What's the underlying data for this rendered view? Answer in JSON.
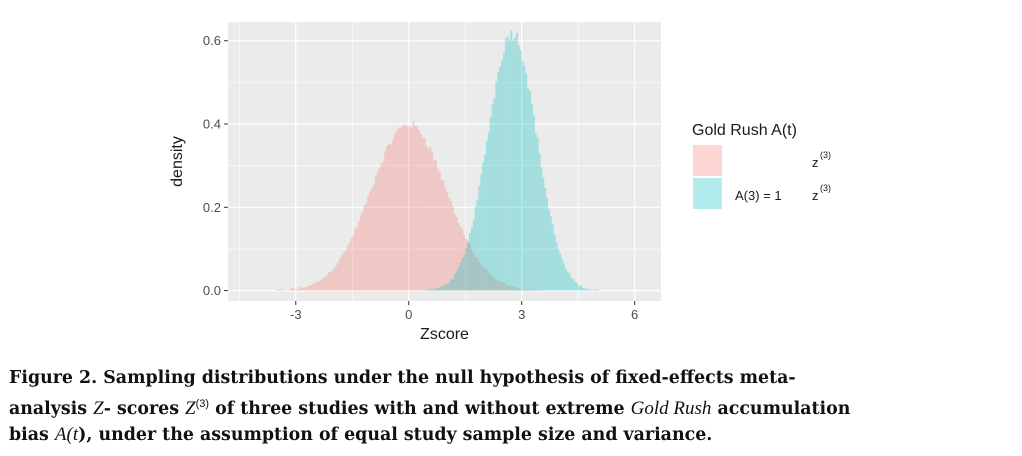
{
  "chart_data": {
    "type": "histogram",
    "xlabel": "Zscore",
    "ylabel": "density",
    "xlim": [
      -4.8,
      6.7
    ],
    "ylim": [
      -0.025,
      0.645
    ],
    "x_ticks": [
      -3,
      0,
      3,
      6
    ],
    "y_ticks": [
      0.0,
      0.2,
      0.4,
      0.6
    ],
    "x_tick_labels": [
      "-3",
      "0",
      "3",
      "6"
    ],
    "y_tick_labels": [
      "0.0",
      "0.2",
      "0.4",
      "0.6"
    ],
    "grid": true,
    "legend_position": "right",
    "legend": {
      "title": "Gold Rush A(t)",
      "entries": [
        {
          "label_main": "",
          "label_var": "z",
          "label_sup": "(3)",
          "color": "#f8766d"
        },
        {
          "label_main": "A(3) = 1",
          "label_var": "z",
          "label_sup": "(3)",
          "color": "#00bfc4"
        }
      ]
    },
    "series": [
      {
        "name": "",
        "color": "#f8766d",
        "distribution": "normal",
        "mean": 0.0,
        "sd": 1.0,
        "peak_density": 0.4
      },
      {
        "name": "A(3) = 1",
        "color": "#00bfc4",
        "distribution": "normal",
        "mean": 2.75,
        "sd": 0.645,
        "peak_density": 0.62
      }
    ],
    "bin_width": 0.05,
    "fill_opacity": 0.3,
    "panel_background": "#ebebeb",
    "grid_color": "#ffffff"
  },
  "caption": {
    "line1": "Figure 2. Sampling distributions under the null hypothesis of fixed-effects meta-",
    "line2_a": "analysis ",
    "line2_z": "Z",
    "line2_b": "- scores ",
    "line2_z2": "Z",
    "line2_sup": "(3)",
    "line2_c": " of three studies with and without extreme ",
    "line2_gr": "Gold Rush",
    "line2_d": " accumulation",
    "line3_a": "bias ",
    "line3_A": "A(",
    "line3_t": "t",
    "line3_b": "), under the assumption of equal study sample size and variance."
  }
}
